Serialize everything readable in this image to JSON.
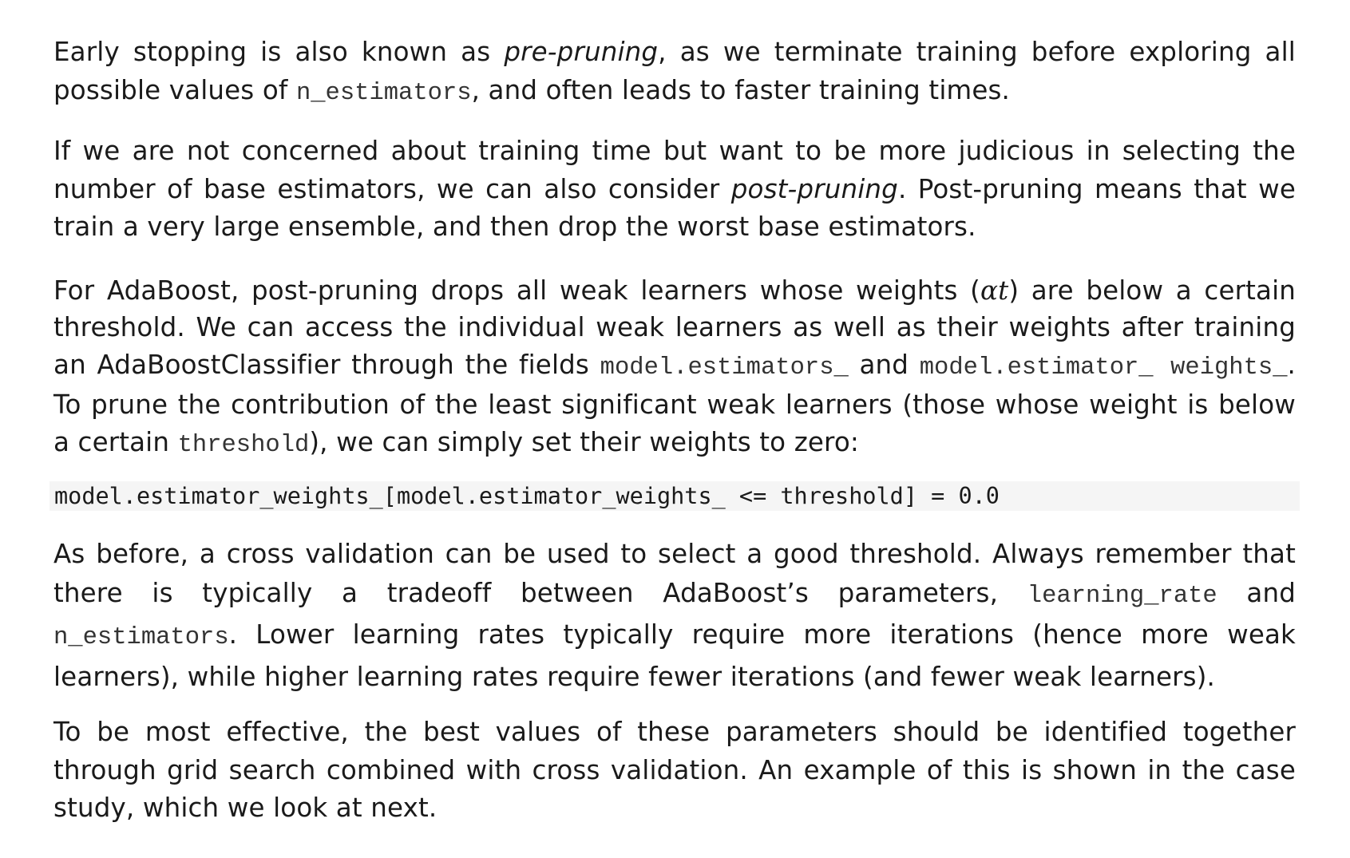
{
  "paragraphs": {
    "p1": {
      "t1": "Early stopping is also known as ",
      "em1": "pre-pruning",
      "t2": ", as we terminate training before exploring all possible values of ",
      "code1": "n_estimators",
      "t3": ", and often leads to faster training times."
    },
    "p2": {
      "t1": "If we are not concerned about training time but want to be more judicious in selecting the number of base estimators, we can also consider ",
      "em1": "post-pruning",
      "t2": ". Post-pruning means that we train a very large ensemble, and then drop the worst base estimators."
    },
    "p3": {
      "t1": "For AdaBoost, post-pruning drops all weak learners whose weights (",
      "math1": "αt",
      "t2": ") are below a certain threshold. We can access the individual weak learners as well as their weights after training an AdaBoostClassifier through the fields ",
      "code1": "model.estimators_",
      "t3": " and ",
      "code2": "model.estimator_ weights_",
      "t4": ". To prune the contribution of the least significant weak learners (those whose weight is below a certain ",
      "code3": "threshold",
      "t5": "), we can simply set their weights to zero:"
    },
    "code_block": "model.estimator_weights_[model.estimator_weights_ <= threshold] = 0.0",
    "p4": {
      "t1": "As before, a cross validation can be used to select a good threshold.  Always remember that there is typically a tradeoff between AdaBoost’s parameters, ",
      "code1": "learning_rate",
      "t2": " and ",
      "code2": "n_estimators",
      "t3": ". Lower learning rates typically require more iterations (hence more weak learners), while higher learning rates require fewer iterations (and fewer weak learners)."
    },
    "p5": {
      "t1": "To be most effective, the best values of these parameters should be identified together through grid search combined with cross validation. An example of this is shown in the case study, which we look at next."
    }
  }
}
